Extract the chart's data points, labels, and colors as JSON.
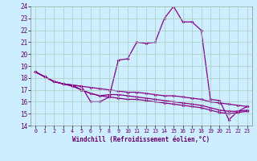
{
  "xlabel": "Windchill (Refroidissement éolien,°C)",
  "bg_color": "#cceeff",
  "line_color": "#880088",
  "grid_color": "#aaccbb",
  "xlim": [
    -0.5,
    23.5
  ],
  "ylim": [
    14,
    24
  ],
  "xticks": [
    0,
    1,
    2,
    3,
    4,
    5,
    6,
    7,
    8,
    9,
    10,
    11,
    12,
    13,
    14,
    15,
    16,
    17,
    18,
    19,
    20,
    21,
    22,
    23
  ],
  "yticks": [
    14,
    15,
    16,
    17,
    18,
    19,
    20,
    21,
    22,
    23,
    24
  ],
  "main_x": [
    0,
    1,
    2,
    3,
    4,
    5,
    6,
    7,
    8,
    9,
    10,
    11,
    12,
    13,
    14,
    15,
    16,
    17,
    18,
    19,
    20,
    21,
    22,
    23
  ],
  "main_y": [
    18.5,
    18.1,
    17.7,
    17.5,
    17.4,
    17.3,
    16.0,
    16.0,
    16.4,
    19.5,
    19.6,
    21.0,
    20.9,
    21.0,
    23.0,
    24.0,
    22.7,
    22.7,
    22.0,
    16.2,
    16.1,
    14.5,
    15.2,
    15.6
  ],
  "line2_x": [
    0,
    1,
    2,
    3,
    4,
    5,
    6,
    7,
    8,
    9,
    10,
    11,
    12,
    13,
    14,
    15,
    16,
    17,
    18,
    19,
    20,
    21,
    22,
    23
  ],
  "line2_y": [
    18.5,
    18.1,
    17.7,
    17.5,
    17.4,
    17.3,
    17.2,
    17.1,
    17.0,
    16.9,
    16.8,
    16.8,
    16.7,
    16.6,
    16.5,
    16.5,
    16.4,
    16.3,
    16.2,
    16.0,
    15.9,
    15.8,
    15.7,
    15.6
  ],
  "line3_x": [
    0,
    1,
    2,
    3,
    4,
    5,
    6,
    7,
    8,
    9,
    10,
    11,
    12,
    13,
    14,
    15,
    16,
    17,
    18,
    19,
    20,
    21,
    22,
    23
  ],
  "line3_y": [
    18.5,
    18.1,
    17.7,
    17.5,
    17.4,
    17.0,
    16.7,
    16.5,
    16.6,
    16.6,
    16.5,
    16.4,
    16.3,
    16.2,
    16.1,
    16.0,
    15.9,
    15.8,
    15.7,
    15.5,
    15.3,
    15.2,
    15.2,
    15.3
  ],
  "line4_x": [
    0,
    1,
    2,
    3,
    4,
    5,
    6,
    7,
    8,
    9,
    10,
    11,
    12,
    13,
    14,
    15,
    16,
    17,
    18,
    19,
    20,
    21,
    22,
    23
  ],
  "line4_y": [
    18.5,
    18.1,
    17.7,
    17.5,
    17.3,
    17.0,
    16.7,
    16.5,
    16.4,
    16.3,
    16.2,
    16.2,
    16.1,
    16.0,
    15.9,
    15.8,
    15.7,
    15.6,
    15.5,
    15.3,
    15.1,
    15.0,
    15.1,
    15.2
  ]
}
